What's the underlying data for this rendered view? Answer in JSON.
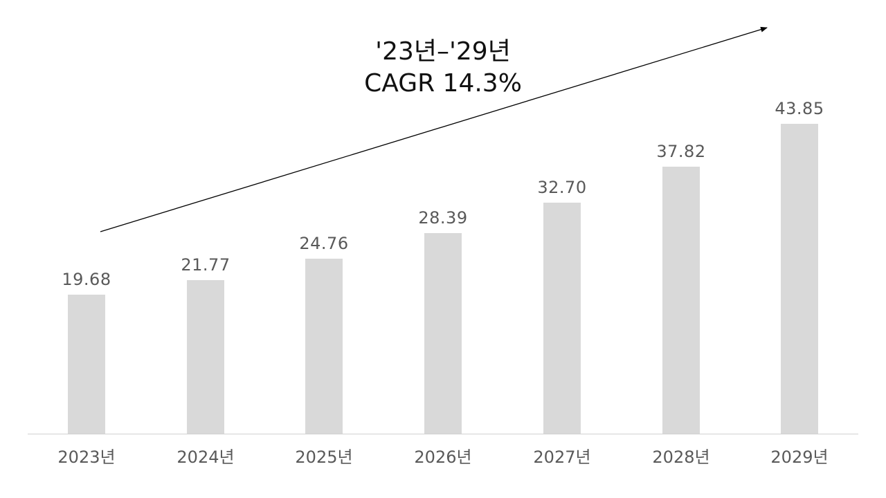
{
  "chart_data": {
    "type": "bar",
    "title": "",
    "xlabel": "",
    "ylabel": "",
    "categories": [
      "2023년",
      "2024년",
      "2025년",
      "2026년",
      "2027년",
      "2028년",
      "2029년"
    ],
    "values": [
      19.68,
      21.77,
      24.76,
      28.39,
      32.7,
      37.82,
      43.85
    ],
    "value_labels": [
      "19.68",
      "21.77",
      "24.76",
      "28.39",
      "32.70",
      "37.82",
      "43.85"
    ],
    "ylim": [
      0,
      45
    ],
    "grid": false,
    "legend": null,
    "bar_color": "#d9d9d9",
    "annotations": [
      {
        "type": "arrow",
        "text_line1": "'23년-'29년",
        "text_line2": "CAGR 14.3%",
        "from_category": "2023년",
        "to_category": "2029년"
      }
    ]
  },
  "annotation": {
    "line1": "'23년–'29년",
    "line2": "CAGR 14.3%"
  },
  "colors": {
    "bar": "#d9d9d9",
    "label_text": "#595959",
    "annotation_text": "#111111",
    "arrow": "#000000",
    "axis": "#d0d0d0"
  }
}
